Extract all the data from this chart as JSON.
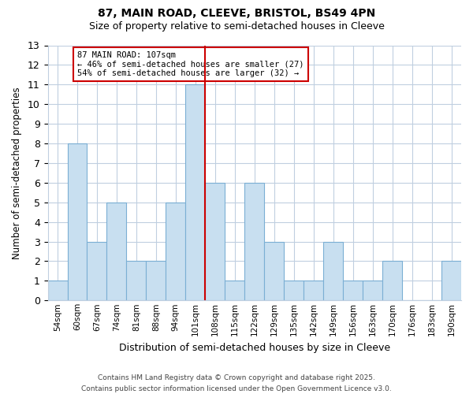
{
  "title1": "87, MAIN ROAD, CLEEVE, BRISTOL, BS49 4PN",
  "title2": "Size of property relative to semi-detached houses in Cleeve",
  "xlabel": "Distribution of semi-detached houses by size in Cleeve",
  "ylabel": "Number of semi-detached properties",
  "bin_labels": [
    "54sqm",
    "60sqm",
    "67sqm",
    "74sqm",
    "81sqm",
    "88sqm",
    "94sqm",
    "101sqm",
    "108sqm",
    "115sqm",
    "122sqm",
    "129sqm",
    "135sqm",
    "142sqm",
    "149sqm",
    "156sqm",
    "163sqm",
    "170sqm",
    "176sqm",
    "183sqm",
    "190sqm"
  ],
  "bin_edges": [
    54,
    60,
    67,
    74,
    81,
    88,
    94,
    101,
    108,
    115,
    122,
    129,
    135,
    142,
    149,
    156,
    163,
    170,
    176,
    183,
    190
  ],
  "counts": [
    1,
    8,
    3,
    5,
    2,
    2,
    5,
    11,
    6,
    1,
    6,
    3,
    1,
    1,
    3,
    1,
    1,
    2,
    0,
    0,
    2
  ],
  "bar_color": "#c8dff0",
  "bar_edge_color": "#7bafd4",
  "grid_color": "#c0cfe0",
  "vline_x": 107,
  "vline_color": "#cc0000",
  "annotation_text": "87 MAIN ROAD: 107sqm\n← 46% of semi-detached houses are smaller (27)\n54% of semi-detached houses are larger (32) →",
  "annotation_box_color": "#ffffff",
  "annotation_box_edge": "#cc0000",
  "ylim": [
    0,
    13
  ],
  "yticks": [
    0,
    1,
    2,
    3,
    4,
    5,
    6,
    7,
    8,
    9,
    10,
    11,
    12,
    13
  ],
  "footer": "Contains HM Land Registry data © Crown copyright and database right 2025.\nContains public sector information licensed under the Open Government Licence v3.0.",
  "bg_color": "#ffffff",
  "plot_bg_color": "#ffffff"
}
